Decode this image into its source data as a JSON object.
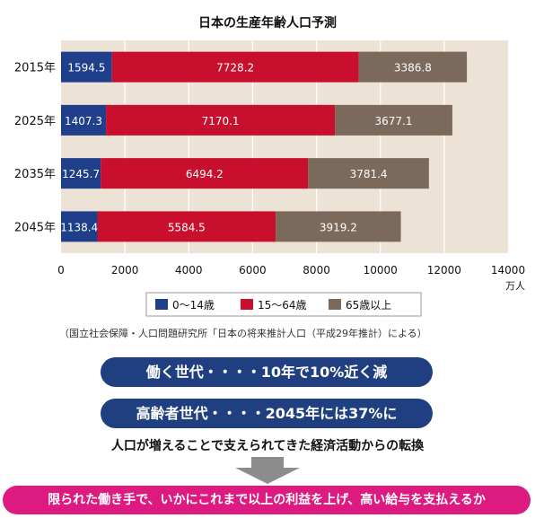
{
  "chart_data": {
    "type": "bar",
    "orientation": "horizontal",
    "stacked": true,
    "title": "日本の生産年齢人口予測",
    "categories": [
      "2015年",
      "2025年",
      "2035年",
      "2045年"
    ],
    "series": [
      {
        "name": "0〜14歳",
        "color": "#1f3f8a",
        "values": [
          1594.5,
          1407.3,
          1245.7,
          1138.4
        ]
      },
      {
        "name": "15〜64歳",
        "color": "#c8102e",
        "values": [
          7728.2,
          7170.1,
          6494.2,
          5584.5
        ]
      },
      {
        "name": "65歳以上",
        "color": "#7b6a5b",
        "values": [
          3386.8,
          3677.1,
          3781.4,
          3919.2
        ]
      }
    ],
    "xlim": [
      0,
      14000
    ],
    "xticks": [
      0,
      2000,
      4000,
      6000,
      8000,
      10000,
      12000,
      14000
    ],
    "xlabel": "万人",
    "legend_position": "bottom"
  },
  "source_note": "（国立社会保障・人口問題研究所「日本の将来推計人口（平成29年推計）による）",
  "points": [
    "働く世代・・・・10年で10%近く減",
    "高齢者世代・・・・2045年には37%に"
  ],
  "subtitle": "人口が増えることで支えられてきた経済活動からの転換",
  "conclusion": "限られた働き手で、いかにこれまで以上の利益を上げ、高い給与を支払えるか",
  "colors": {
    "plot_bg": "#ece3d6",
    "pill": "#1f3f80",
    "banner": "#dc1a80",
    "arrow": "#8c8c8c"
  }
}
